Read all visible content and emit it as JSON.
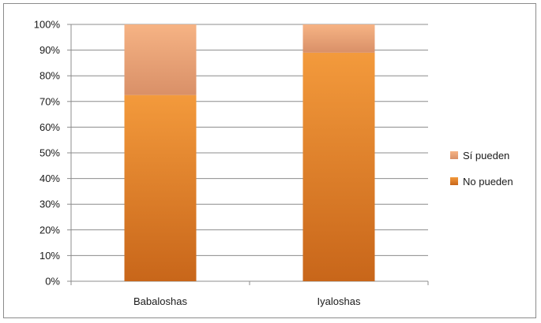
{
  "chart_data": {
    "type": "bar",
    "stacked": true,
    "percent": true,
    "categories": [
      "Babaloshas",
      "Iyaloshas"
    ],
    "series": [
      {
        "name": "No pueden",
        "values": [
          72.5,
          89
        ],
        "color": "#E07B20"
      },
      {
        "name": "Sí pueden",
        "values": [
          27.5,
          11
        ],
        "color": "#F2A778"
      }
    ],
    "ylim": [
      0,
      100
    ],
    "y_ticks": [
      "0%",
      "10%",
      "20%",
      "30%",
      "40%",
      "50%",
      "60%",
      "70%",
      "80%",
      "90%",
      "100%"
    ],
    "grid": true,
    "legend_position": "right",
    "legend_order": [
      "Sí pueden",
      "No pueden"
    ]
  }
}
